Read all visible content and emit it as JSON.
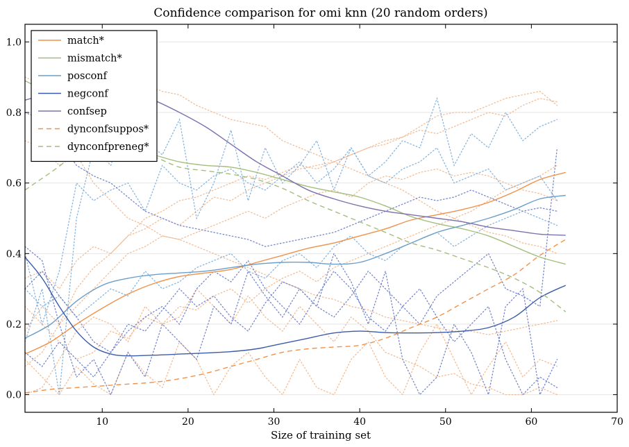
{
  "chart_data": {
    "type": "line",
    "title": "Confidence comparison for omi knn (20 random orders)",
    "xlabel": "Size of training set",
    "ylabel": "",
    "xlim": [
      1,
      70
    ],
    "ylim": [
      -0.05,
      1.05
    ],
    "xticks": [
      10,
      20,
      30,
      40,
      50,
      60,
      70
    ],
    "yticks": [
      0.0,
      0.2,
      0.4,
      0.6,
      0.8,
      1.0
    ],
    "ytick_labels": [
      "0.0",
      "0.2",
      "0.4",
      "0.6",
      "0.8",
      "1.0"
    ],
    "grid": "horizontal",
    "legend_position": "top-left",
    "series": [
      {
        "name": "match*",
        "color": "#f0914a",
        "dash": "solid",
        "x": [
          1,
          4,
          7,
          10,
          13,
          16,
          19,
          22,
          25,
          28,
          31,
          34,
          37,
          40,
          43,
          46,
          49,
          52,
          55,
          58,
          61,
          64
        ],
        "y": [
          0.115,
          0.15,
          0.2,
          0.245,
          0.285,
          0.315,
          0.335,
          0.345,
          0.355,
          0.375,
          0.395,
          0.415,
          0.43,
          0.45,
          0.47,
          0.495,
          0.51,
          0.525,
          0.545,
          0.575,
          0.61,
          0.63
        ]
      },
      {
        "name": "mismatch*",
        "color": "#a3be7c",
        "dash": "solid",
        "x": [
          1,
          4,
          7,
          10,
          13,
          16,
          19,
          22,
          25,
          28,
          31,
          34,
          37,
          40,
          43,
          46,
          49,
          52,
          55,
          58,
          61,
          64
        ],
        "y": [
          0.89,
          0.85,
          0.79,
          0.74,
          0.7,
          0.68,
          0.66,
          0.65,
          0.645,
          0.63,
          0.61,
          0.59,
          0.575,
          0.56,
          0.535,
          0.505,
          0.485,
          0.47,
          0.45,
          0.42,
          0.39,
          0.37
        ]
      },
      {
        "name": "posconf",
        "color": "#6b9ec8",
        "dash": "solid",
        "x": [
          1,
          4,
          7,
          10,
          13,
          16,
          19,
          22,
          25,
          28,
          31,
          34,
          37,
          40,
          43,
          46,
          49,
          52,
          55,
          58,
          61,
          64
        ],
        "y": [
          0.16,
          0.2,
          0.265,
          0.31,
          0.33,
          0.34,
          0.345,
          0.35,
          0.36,
          0.37,
          0.375,
          0.375,
          0.37,
          0.375,
          0.4,
          0.43,
          0.46,
          0.48,
          0.5,
          0.525,
          0.555,
          0.565
        ]
      },
      {
        "name": "negconf",
        "color": "#3a5ca8",
        "dash": "solid",
        "x": [
          1,
          3,
          5,
          7,
          9,
          11,
          13,
          16,
          19,
          22,
          25,
          28,
          31,
          34,
          37,
          40,
          43,
          46,
          49,
          52,
          55,
          58,
          61,
          64
        ],
        "y": [
          0.39,
          0.33,
          0.25,
          0.18,
          0.135,
          0.115,
          0.11,
          0.112,
          0.115,
          0.118,
          0.122,
          0.13,
          0.145,
          0.16,
          0.175,
          0.18,
          0.176,
          0.175,
          0.176,
          0.18,
          0.19,
          0.22,
          0.275,
          0.31
        ]
      },
      {
        "name": "confsep",
        "color": "#7e70ad",
        "dash": "solid",
        "x": [
          1,
          4,
          7,
          10,
          13,
          16,
          19,
          22,
          25,
          28,
          31,
          34,
          37,
          40,
          43,
          46,
          49,
          52,
          55,
          58,
          61,
          64
        ],
        "y": [
          0.835,
          0.855,
          0.87,
          0.87,
          0.86,
          0.835,
          0.8,
          0.76,
          0.71,
          0.66,
          0.62,
          0.58,
          0.555,
          0.535,
          0.52,
          0.51,
          0.5,
          0.49,
          0.475,
          0.465,
          0.455,
          0.452
        ]
      },
      {
        "name": "dynconfsuppos*",
        "color": "#f0914a",
        "dash": "dashed",
        "x": [
          1,
          4,
          7,
          10,
          13,
          16,
          19,
          22,
          25,
          28,
          31,
          34,
          37,
          40,
          43,
          46,
          49,
          52,
          55,
          58,
          61,
          64
        ],
        "y": [
          0.005,
          0.015,
          0.02,
          0.025,
          0.03,
          0.035,
          0.045,
          0.06,
          0.08,
          0.1,
          0.12,
          0.13,
          0.135,
          0.14,
          0.16,
          0.19,
          0.22,
          0.26,
          0.3,
          0.34,
          0.395,
          0.44
        ]
      },
      {
        "name": "dynconfpreneg*",
        "color": "#a3be7c",
        "dash": "dashed",
        "x": [
          1,
          4,
          7,
          10,
          13,
          16,
          19,
          22,
          25,
          28,
          31,
          34,
          37,
          40,
          43,
          46,
          49,
          52,
          55,
          58,
          61,
          64
        ],
        "y": [
          0.58,
          0.63,
          0.68,
          0.7,
          0.695,
          0.675,
          0.645,
          0.635,
          0.625,
          0.61,
          0.585,
          0.55,
          0.52,
          0.49,
          0.46,
          0.43,
          0.41,
          0.385,
          0.36,
          0.33,
          0.29,
          0.235
        ]
      }
    ],
    "run_traces": [
      {
        "color": "#f0b890",
        "y": [
          0.33,
          0.35,
          0.3,
          0.38,
          0.42,
          0.4,
          0.45,
          0.47,
          0.5,
          0.48,
          0.52,
          0.56,
          0.55,
          0.58,
          0.6,
          0.62,
          0.64,
          0.65,
          0.66,
          0.68,
          0.7,
          0.71,
          0.73,
          0.75,
          0.74,
          0.76,
          0.78,
          0.8,
          0.79,
          0.82,
          0.84,
          0.83
        ]
      },
      {
        "color": "#f0b890",
        "y": [
          0.18,
          0.25,
          0.2,
          0.3,
          0.36,
          0.4,
          0.45,
          0.5,
          0.52,
          0.55,
          0.56,
          0.58,
          0.6,
          0.62,
          0.61,
          0.63,
          0.65,
          0.64,
          0.66,
          0.68,
          0.7,
          0.72,
          0.73,
          0.76,
          0.79,
          0.8,
          0.8,
          0.82,
          0.84,
          0.85,
          0.86,
          0.82
        ]
      },
      {
        "color": "#f0b890",
        "y": [
          0.08,
          0.12,
          0.2,
          0.25,
          0.3,
          0.35,
          0.4,
          0.42,
          0.45,
          0.44,
          0.46,
          0.48,
          0.5,
          0.52,
          0.5,
          0.53,
          0.55,
          0.57,
          0.58,
          0.56,
          0.6,
          0.62,
          0.61,
          0.63,
          0.64,
          0.62,
          0.63,
          0.62,
          0.6,
          0.58,
          0.57,
          0.55
        ]
      },
      {
        "color": "#f0b890",
        "y": [
          0.72,
          0.7,
          0.65,
          0.68,
          0.6,
          0.55,
          0.5,
          0.48,
          0.45,
          0.44,
          0.42,
          0.4,
          0.38,
          0.36,
          0.34,
          0.32,
          0.3,
          0.28,
          0.27,
          0.25,
          0.24,
          0.22,
          0.21,
          0.2,
          0.19,
          0.18,
          0.18,
          0.17,
          0.18,
          0.19,
          0.2,
          0.21
        ]
      },
      {
        "color": "#f0b890",
        "y": [
          0.25,
          0.2,
          0.15,
          0.1,
          0.12,
          0.18,
          0.16,
          0.22,
          0.2,
          0.25,
          0.24,
          0.28,
          0.3,
          0.26,
          0.3,
          0.33,
          0.35,
          0.32,
          0.36,
          0.38,
          0.4,
          0.42,
          0.44,
          0.46,
          0.48,
          0.5,
          0.52,
          0.55,
          0.58,
          0.6,
          0.62,
          0.65
        ]
      },
      {
        "color": "#f0b890",
        "y": [
          0.1,
          0.05,
          0.0,
          0.08,
          0.03,
          0.0,
          0.12,
          0.06,
          0.02,
          0.15,
          0.1,
          0.0,
          0.08,
          0.12,
          0.05,
          0.0,
          0.1,
          0.02,
          0.0,
          0.1,
          0.15,
          0.05,
          0.0,
          0.12,
          0.2,
          0.1,
          0.0,
          0.08,
          0.15,
          0.05,
          0.1,
          0.08
        ]
      },
      {
        "color": "#f0b890",
        "y": [
          0.0,
          0.02,
          0.1,
          0.18,
          0.22,
          0.2,
          0.15,
          0.25,
          0.2,
          0.22,
          0.3,
          0.25,
          0.2,
          0.28,
          0.22,
          0.18,
          0.25,
          0.2,
          0.15,
          0.22,
          0.18,
          0.12,
          0.1,
          0.08,
          0.05,
          0.06,
          0.03,
          0.02,
          0.0,
          0.0,
          0.02,
          0.0
        ]
      },
      {
        "color": "#f0b890",
        "y": [
          0.9,
          0.88,
          0.85,
          0.86,
          0.88,
          0.9,
          0.89,
          0.88,
          0.86,
          0.85,
          0.82,
          0.8,
          0.78,
          0.77,
          0.76,
          0.72,
          0.7,
          0.68,
          0.66,
          0.64,
          0.62,
          0.6,
          0.58,
          0.55,
          0.52,
          0.5,
          0.48,
          0.46,
          0.45,
          0.43,
          0.42,
          0.4
        ]
      },
      {
        "color": "#7fb0dc",
        "y": [
          0.15,
          0.3,
          0.0,
          0.5,
          0.7,
          0.65,
          0.8,
          0.72,
          0.68,
          0.78,
          0.5,
          0.6,
          0.75,
          0.55,
          0.7,
          0.6,
          0.65,
          0.72,
          0.58,
          0.7,
          0.62,
          0.66,
          0.72,
          0.7,
          0.84,
          0.65,
          0.74,
          0.7,
          0.8,
          0.72,
          0.76,
          0.78
        ]
      },
      {
        "color": "#7fb0dc",
        "y": [
          0.4,
          0.2,
          0.35,
          0.6,
          0.55,
          0.58,
          0.6,
          0.52,
          0.65,
          0.6,
          0.58,
          0.62,
          0.64,
          0.6,
          0.58,
          0.62,
          0.66,
          0.6,
          0.64,
          0.7,
          0.62,
          0.6,
          0.64,
          0.66,
          0.7,
          0.6,
          0.62,
          0.64,
          0.58,
          0.6,
          0.62,
          0.55
        ]
      },
      {
        "color": "#7fb0dc",
        "y": [
          0.3,
          0.25,
          0.28,
          0.22,
          0.26,
          0.3,
          0.28,
          0.35,
          0.3,
          0.32,
          0.36,
          0.38,
          0.4,
          0.35,
          0.33,
          0.38,
          0.4,
          0.36,
          0.42,
          0.45,
          0.4,
          0.38,
          0.42,
          0.44,
          0.46,
          0.42,
          0.45,
          0.48,
          0.5,
          0.52,
          0.5,
          0.48
        ]
      },
      {
        "color": "#6f80c8",
        "y": [
          0.42,
          0.38,
          0.2,
          0.05,
          0.1,
          0.0,
          0.12,
          0.05,
          0.2,
          0.15,
          0.1,
          0.25,
          0.2,
          0.35,
          0.28,
          0.22,
          0.3,
          0.25,
          0.4,
          0.32,
          0.2,
          0.35,
          0.1,
          0.0,
          0.05,
          0.2,
          0.12,
          0.0,
          0.25,
          0.3,
          0.0,
          0.1
        ]
      },
      {
        "color": "#6f80c8",
        "y": [
          0.3,
          0.35,
          0.28,
          0.22,
          0.15,
          0.12,
          0.2,
          0.18,
          0.24,
          0.3,
          0.25,
          0.28,
          0.22,
          0.18,
          0.26,
          0.32,
          0.3,
          0.25,
          0.22,
          0.28,
          0.35,
          0.3,
          0.25,
          0.2,
          0.28,
          0.32,
          0.36,
          0.4,
          0.3,
          0.28,
          0.25,
          0.7
        ]
      },
      {
        "color": "#6f80c8",
        "y": [
          0.8,
          0.78,
          0.72,
          0.65,
          0.62,
          0.6,
          0.56,
          0.52,
          0.5,
          0.48,
          0.47,
          0.46,
          0.45,
          0.44,
          0.42,
          0.43,
          0.44,
          0.45,
          0.46,
          0.48,
          0.5,
          0.52,
          0.54,
          0.56,
          0.55,
          0.56,
          0.58,
          0.56,
          0.54,
          0.52,
          0.53,
          0.52
        ]
      },
      {
        "color": "#6f80c8",
        "y": [
          0.12,
          0.08,
          0.15,
          0.1,
          0.05,
          0.12,
          0.18,
          0.22,
          0.25,
          0.2,
          0.3,
          0.35,
          0.32,
          0.38,
          0.3,
          0.25,
          0.2,
          0.28,
          0.35,
          0.3,
          0.22,
          0.18,
          0.25,
          0.3,
          0.22,
          0.15,
          0.2,
          0.25,
          0.1,
          0.0,
          0.05,
          0.02
        ]
      }
    ],
    "run_x_start": 1,
    "run_x_step": 2
  }
}
